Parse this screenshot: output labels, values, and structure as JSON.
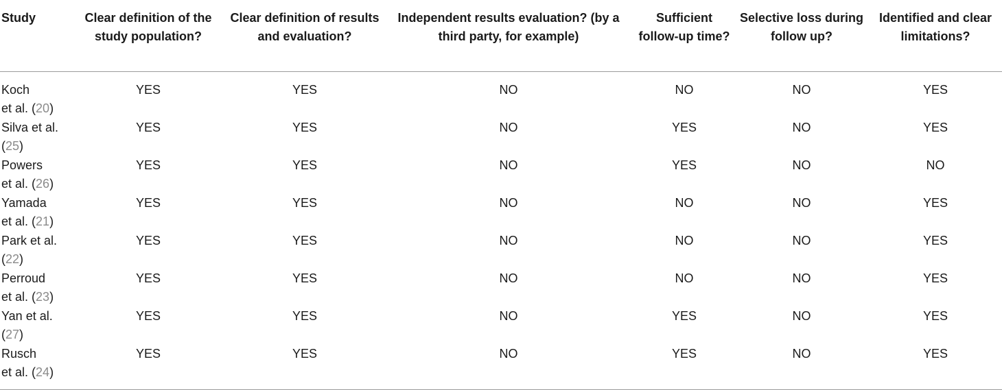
{
  "columns": [
    "Study",
    "Clear definition of the study population?",
    "Clear definition of results and evaluation?",
    "Independent results evaluation? (by a third party, for example)",
    "Sufficient follow-up time?",
    "Selective loss during follow up?",
    "Identified and clear limitations?"
  ],
  "rows": [
    {
      "study_a": "Koch",
      "study_b": "et al. (",
      "ref": "20",
      "study_c": ")",
      "values": [
        "YES",
        "YES",
        "NO",
        "NO",
        "NO",
        "YES"
      ]
    },
    {
      "study_a": "Silva et al.",
      "study_b": "(",
      "ref": "25",
      "study_c": ")",
      "values": [
        "YES",
        "YES",
        "NO",
        "YES",
        "NO",
        "YES"
      ]
    },
    {
      "study_a": "Powers",
      "study_b": "et al. (",
      "ref": "26",
      "study_c": ")",
      "values": [
        "YES",
        "YES",
        "NO",
        "YES",
        "NO",
        "NO"
      ]
    },
    {
      "study_a": "Yamada",
      "study_b": "et al. (",
      "ref": "21",
      "study_c": ")",
      "values": [
        "YES",
        "YES",
        "NO",
        "NO",
        "NO",
        "YES"
      ]
    },
    {
      "study_a": "Park et al.",
      "study_b": "(",
      "ref": "22",
      "study_c": ")",
      "values": [
        "YES",
        "YES",
        "NO",
        "NO",
        "NO",
        "YES"
      ]
    },
    {
      "study_a": "Perroud",
      "study_b": "et al. (",
      "ref": "23",
      "study_c": ")",
      "values": [
        "YES",
        "YES",
        "NO",
        "NO",
        "NO",
        "YES"
      ]
    },
    {
      "study_a": "Yan et al.",
      "study_b": "(",
      "ref": "27",
      "study_c": ")",
      "values": [
        "YES",
        "YES",
        "NO",
        "YES",
        "NO",
        "YES"
      ]
    },
    {
      "study_a": "Rusch",
      "study_b": "et al. (",
      "ref": "24",
      "study_c": ")",
      "values": [
        "YES",
        "YES",
        "NO",
        "YES",
        "NO",
        "YES"
      ]
    }
  ]
}
